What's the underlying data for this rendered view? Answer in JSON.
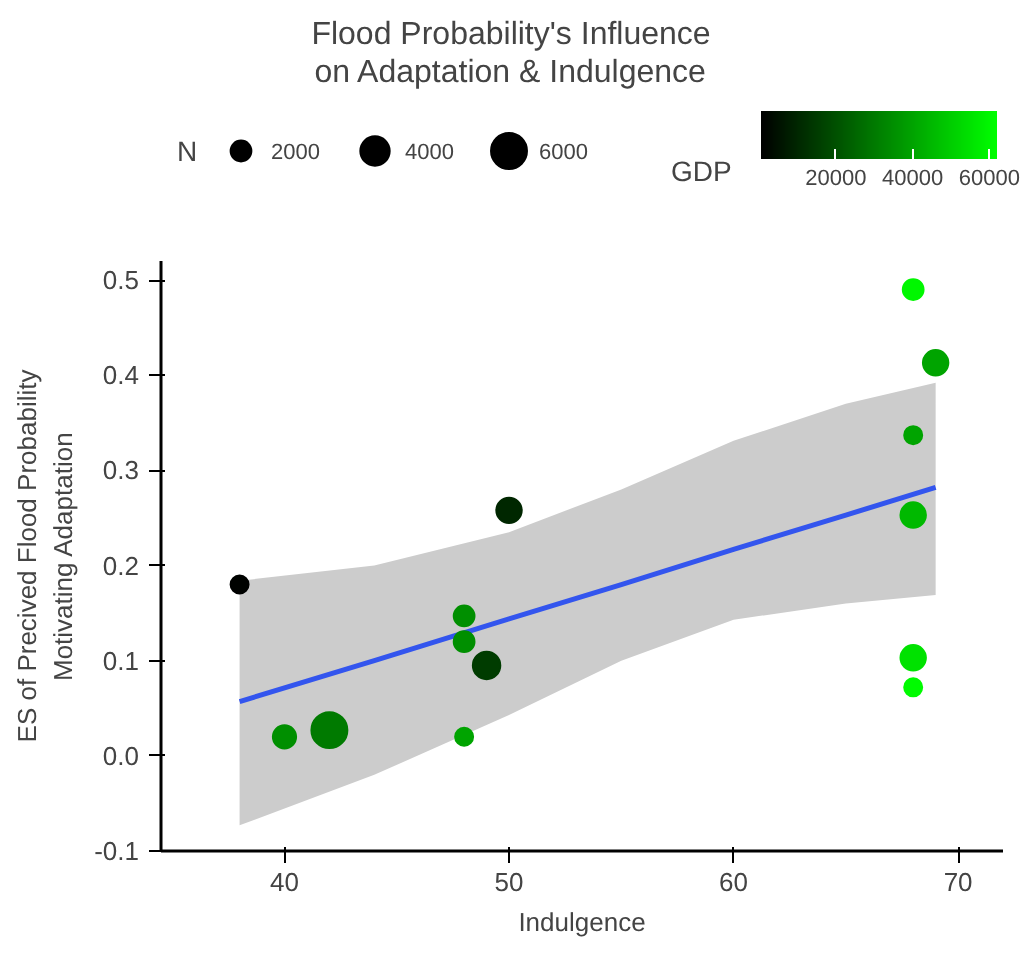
{
  "chart_data": {
    "type": "bubble",
    "title": "Flood Probability's Influence\non Adaptation & Indulgence",
    "xlabel": "Indulgence",
    "ylabel": "ES of Precived Flood Probability\nMotivating Adaptation",
    "legend_title": "N",
    "clabel": "GDP",
    "xlim": [
      34.5,
      72
    ],
    "xticks": [
      40,
      50,
      60,
      70
    ],
    "ylim": [
      -0.1,
      0.52
    ],
    "yticks": [
      {
        "value": -0.1,
        "label": "-0.1"
      },
      {
        "value": 0,
        "label": "0.0"
      },
      {
        "value": 0.1,
        "label": "0.1"
      },
      {
        "value": 0.2,
        "label": "0.2"
      },
      {
        "value": 0.3,
        "label": "0.3"
      },
      {
        "value": 0.4,
        "label": "0.4"
      },
      {
        "value": 0.5,
        "label": "0.5"
      }
    ],
    "grid": false,
    "size_legend": [
      2000,
      4000,
      6000
    ],
    "clim": [
      500,
      62000
    ],
    "cticks": [
      20000,
      40000,
      60000
    ],
    "series": [
      {
        "marker": "circle",
        "colors": [
          "#000200",
          "#008f00",
          "#007a00",
          "#008f00",
          "#008f00",
          "#00a400",
          "#003c00",
          "#002700",
          "#00f700",
          "#00a400",
          "#00a400",
          "#00b900",
          "#00e200",
          "#00fb00"
        ],
        "x": [
          38,
          40,
          42,
          48,
          48,
          48,
          49,
          50,
          68,
          69,
          68,
          68,
          68,
          68
        ],
        "values": [
          0.18,
          0.02,
          0.027,
          0.147,
          0.12,
          0.02,
          0.095,
          0.258,
          0.49,
          0.413,
          0.337,
          0.253,
          0.103,
          0.072
        ],
        "sizes": [
          1500,
          2500,
          6000,
          2000,
          2000,
          1500,
          3500,
          3000,
          2000,
          3000,
          1500,
          3000,
          3000,
          1500
        ],
        "cvalues": [
          1000,
          35000,
          30000,
          35000,
          35000,
          40000,
          15000,
          10000,
          60000,
          40000,
          40000,
          45000,
          55000,
          61000
        ]
      },
      {
        "type": "line",
        "color": "#3355ee",
        "x": [
          38,
          44,
          50,
          55,
          60,
          65,
          69
        ],
        "values": [
          0.057,
          0.1,
          0.144,
          0.18,
          0.217,
          0.253,
          0.282
        ],
        "lower": [
          -0.073,
          -0.02,
          0.043,
          0.1,
          0.143,
          0.16,
          0.169
        ],
        "upper": [
          0.184,
          0.2,
          0.235,
          0.28,
          0.331,
          0.37,
          0.392
        ]
      }
    ]
  }
}
